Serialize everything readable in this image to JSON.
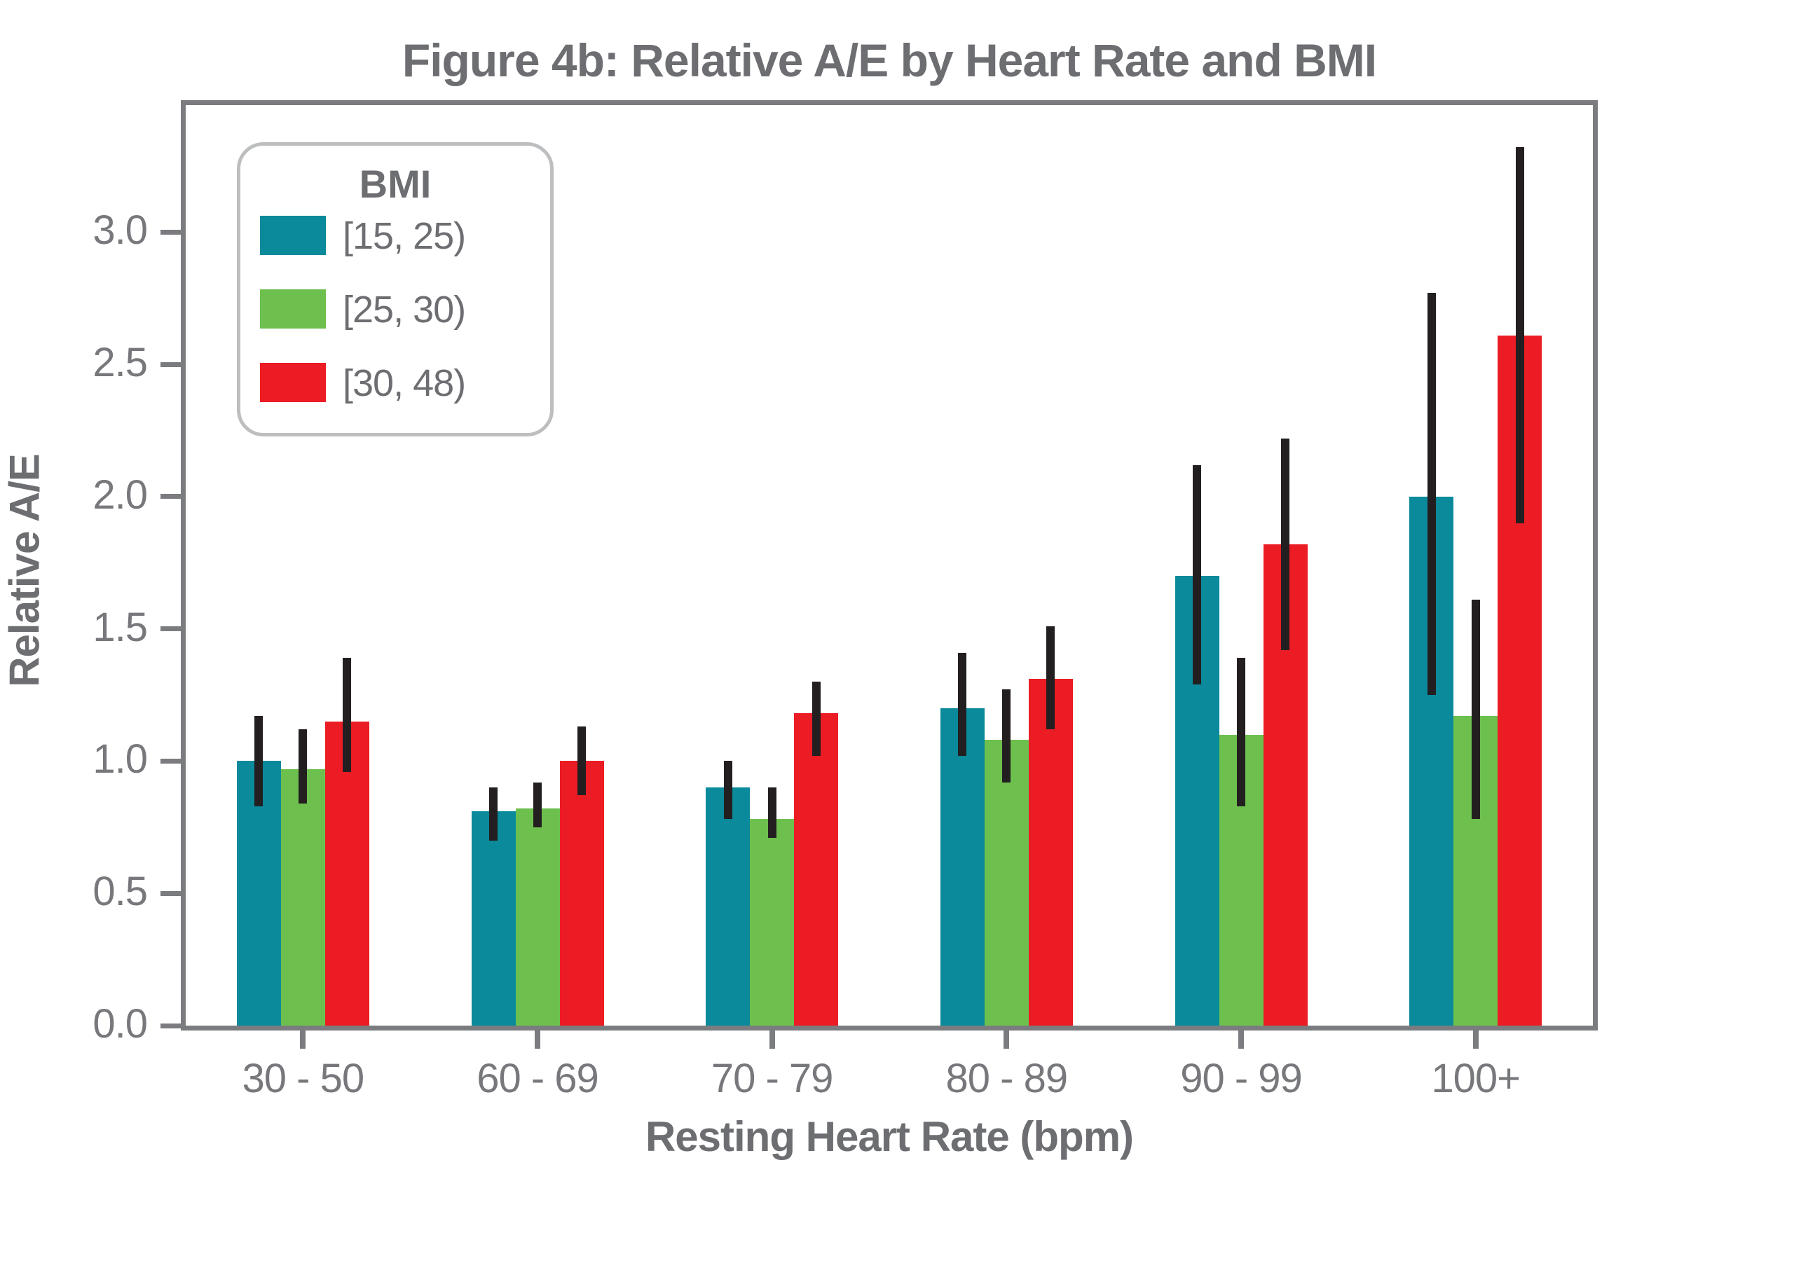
{
  "title": "Figure 4b: Relative A/E by Heart Rate and BMI",
  "legend": {
    "title": "BMI",
    "items": [
      {
        "label": "[15, 25)",
        "color": "#0a8a9b"
      },
      {
        "label": "[25, 30)",
        "color": "#6ec04e"
      },
      {
        "label": "[30, 48)",
        "color": "#ec1c24"
      }
    ]
  },
  "chart_data": {
    "type": "bar",
    "title": "Figure 4b: Relative A/E by Heart Rate and BMI",
    "xlabel": "Resting Heart Rate (bpm)",
    "ylabel": "Relative A/E",
    "categories": [
      "30 - 50",
      "60 - 69",
      "70 - 79",
      "80 - 89",
      "90 - 99",
      "100+"
    ],
    "yticks": [
      "0.0",
      "0.5",
      "1.0",
      "1.5",
      "2.0",
      "2.5",
      "3.0"
    ],
    "ylim": [
      0,
      3.48
    ],
    "grid": false,
    "legend_position": "upper left",
    "error_bars": true,
    "series": [
      {
        "name": "[15, 25)",
        "color": "#0a8a9b",
        "values": [
          1.0,
          0.81,
          0.9,
          1.2,
          1.7,
          2.0
        ],
        "err_lo": [
          0.83,
          0.7,
          0.78,
          1.02,
          1.29,
          1.25
        ],
        "err_hi": [
          1.17,
          0.9,
          1.0,
          1.41,
          2.12,
          2.77
        ]
      },
      {
        "name": "[25, 30)",
        "color": "#6ec04e",
        "values": [
          0.97,
          0.82,
          0.78,
          1.08,
          1.1,
          1.17
        ],
        "err_lo": [
          0.84,
          0.75,
          0.71,
          0.92,
          0.83,
          0.78
        ],
        "err_hi": [
          1.12,
          0.92,
          0.9,
          1.27,
          1.39,
          1.61
        ]
      },
      {
        "name": "[30, 48)",
        "color": "#ec1c24",
        "values": [
          1.15,
          1.0,
          1.18,
          1.31,
          1.82,
          2.61
        ],
        "err_lo": [
          0.96,
          0.87,
          1.02,
          1.12,
          1.42,
          1.9
        ],
        "err_hi": [
          1.39,
          1.13,
          1.3,
          1.51,
          2.22,
          3.32
        ]
      }
    ]
  }
}
